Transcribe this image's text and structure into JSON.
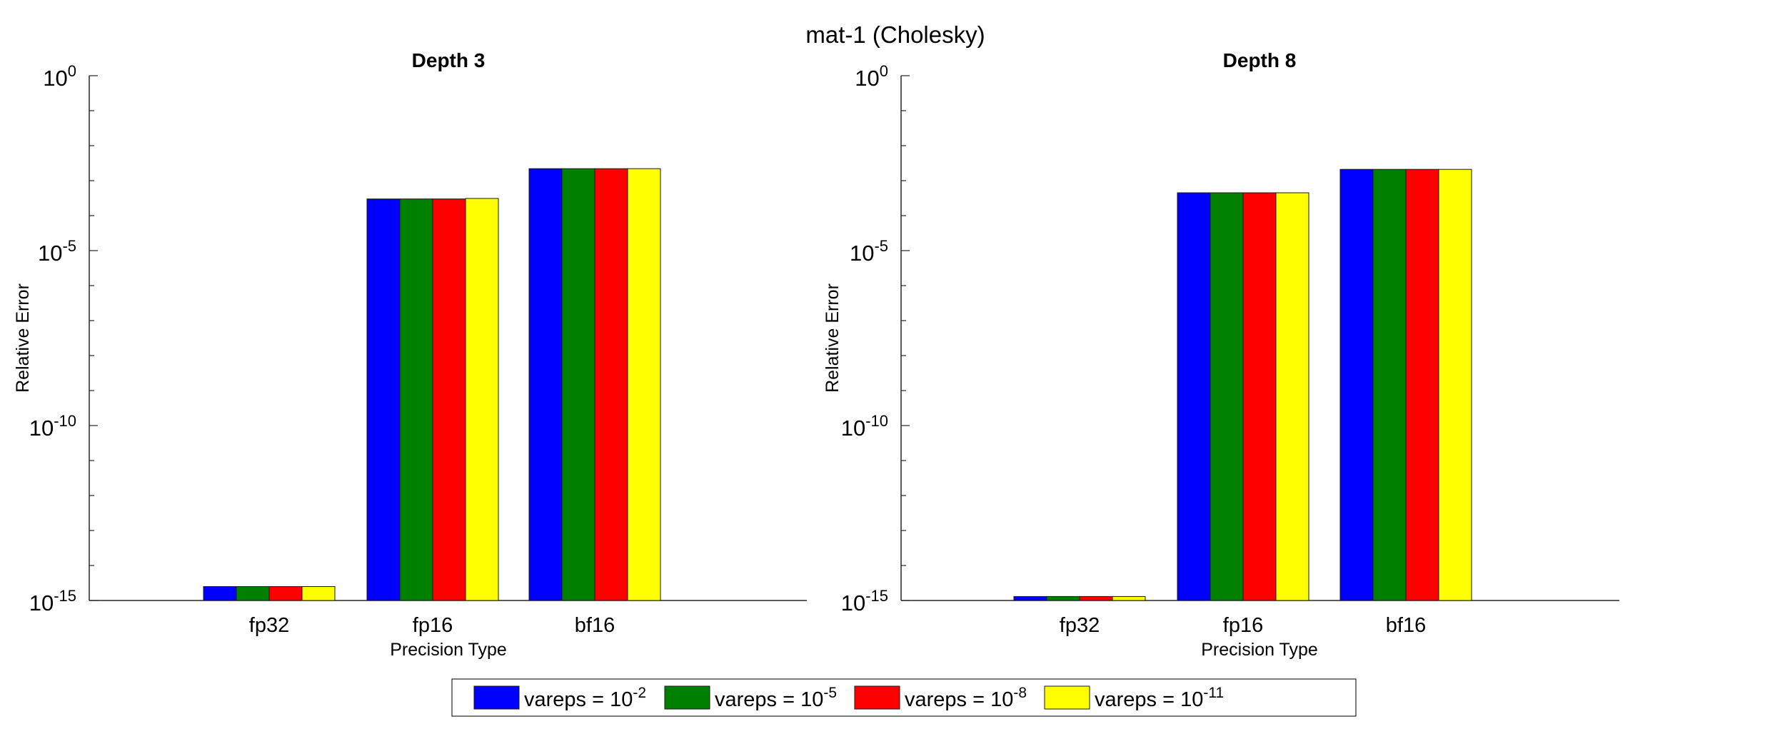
{
  "figure": {
    "title": "mat-1 (Cholesky)"
  },
  "chart_data": [
    {
      "type": "bar",
      "title": "Depth 3",
      "xlabel": "Precision Type",
      "ylabel": "Relative Error",
      "yscale": "log",
      "ylim": [
        1e-15,
        1
      ],
      "yticks": [
        {
          "base": "10",
          "exp": "0"
        },
        {
          "base": "10",
          "exp": "-5"
        },
        {
          "base": "10",
          "exp": "-10"
        },
        {
          "base": "10",
          "exp": "-15"
        }
      ],
      "categories": [
        "fp32",
        "fp16",
        "bf16"
      ],
      "series": [
        {
          "name": "vareps = 10^-2",
          "values": [
            2.5e-15,
            0.0003,
            0.0022
          ]
        },
        {
          "name": "vareps = 10^-5",
          "values": [
            2.5e-15,
            0.0003,
            0.0022
          ]
        },
        {
          "name": "vareps = 10^-8",
          "values": [
            2.5e-15,
            0.0003,
            0.0022
          ]
        },
        {
          "name": "vareps = 10^-11",
          "values": [
            2.5e-15,
            0.00031,
            0.0022
          ]
        }
      ],
      "grid": false
    },
    {
      "type": "bar",
      "title": "Depth 8",
      "xlabel": "Precision Type",
      "ylabel": "Relative Error",
      "yscale": "log",
      "ylim": [
        1e-15,
        1
      ],
      "yticks": [
        {
          "base": "10",
          "exp": "0"
        },
        {
          "base": "10",
          "exp": "-5"
        },
        {
          "base": "10",
          "exp": "-10"
        },
        {
          "base": "10",
          "exp": "-15"
        }
      ],
      "categories": [
        "fp32",
        "fp16",
        "bf16"
      ],
      "series": [
        {
          "name": "vareps = 10^-2",
          "values": [
            1.3e-15,
            0.00045,
            0.0021
          ]
        },
        {
          "name": "vareps = 10^-5",
          "values": [
            1.3e-15,
            0.00045,
            0.0021
          ]
        },
        {
          "name": "vareps = 10^-8",
          "values": [
            1.3e-15,
            0.00045,
            0.0021
          ]
        },
        {
          "name": "vareps = 10^-11",
          "values": [
            1.3e-15,
            0.00045,
            0.0021
          ]
        }
      ],
      "grid": false
    }
  ],
  "legend": {
    "placement": "bottom-center",
    "orientation": "horizontal",
    "items": [
      {
        "prefix": "vareps = 10",
        "exp": "-2",
        "color": "#0000ff"
      },
      {
        "prefix": "vareps = 10",
        "exp": "-5",
        "color": "#008000"
      },
      {
        "prefix": "vareps = 10",
        "exp": "-8",
        "color": "#ff0000"
      },
      {
        "prefix": "vareps = 10",
        "exp": "-11",
        "color": "#ffff00"
      }
    ]
  }
}
